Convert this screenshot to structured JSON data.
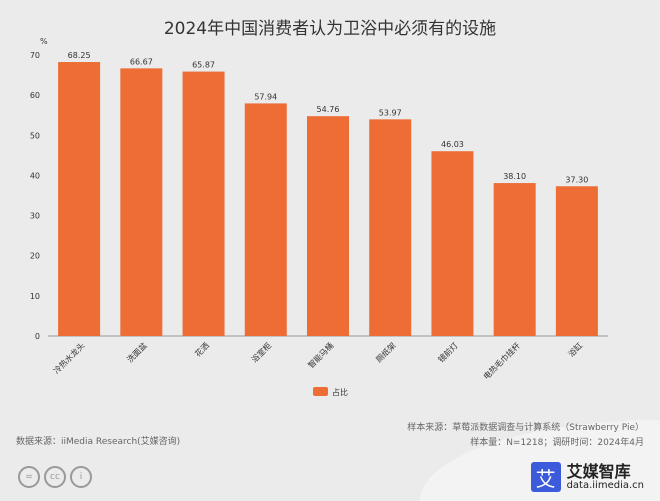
{
  "chart_data": {
    "type": "bar",
    "title": "2024年中国消费者认为卫浴中必须有的设施",
    "ylabel": "%",
    "ylim": [
      0,
      70
    ],
    "yticks": [
      0,
      10,
      20,
      30,
      40,
      50,
      60,
      70
    ],
    "categories": [
      "冷热水龙头",
      "洗面盆",
      "花洒",
      "浴室柜",
      "智能马桶",
      "厕纸架",
      "镜前灯",
      "电热毛巾挂杆",
      "浴缸"
    ],
    "series": [
      {
        "name": "占比",
        "values": [
          68.25,
          66.67,
          65.87,
          57.94,
          54.76,
          53.97,
          46.03,
          38.1,
          37.3
        ],
        "color": "#ed6d35"
      }
    ],
    "data_labels": [
      "68.25",
      "66.67",
      "65.87",
      "57.94",
      "54.76",
      "53.97",
      "46.03",
      "38.10",
      "37.30"
    ],
    "legend_placement": "bottom",
    "grid": false
  },
  "footer": {
    "data_source": "数据来源：iiMedia Research(艾媒咨询)",
    "sample_source": "样本来源：草莓派数据调查与计算系统（Strawberry Pie）",
    "sample_info": "样本量：N=1218；调研时间：2024年4月"
  },
  "logo": {
    "mark": "艾",
    "name": "艾媒智库",
    "url": "data.iimedia.cn"
  },
  "license_icons": [
    "equals-icon",
    "cc-icon",
    "person-icon"
  ],
  "license_text": {
    "cc": "cc"
  }
}
